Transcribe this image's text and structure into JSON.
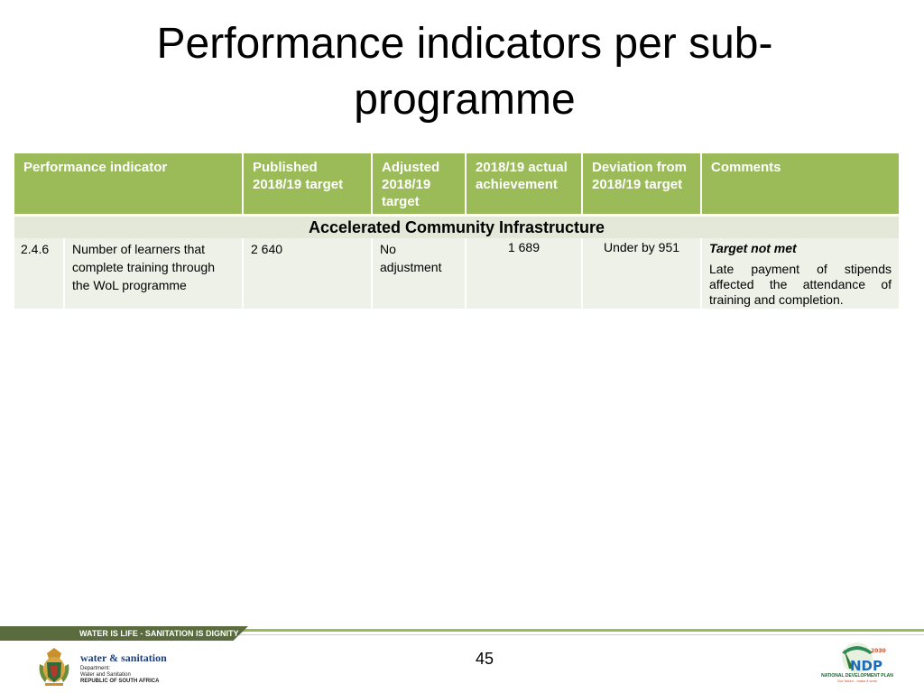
{
  "title": "Performance indicators per sub-programme",
  "table": {
    "headers": [
      "Performance indicator",
      "Published 2018/19 target",
      "Adjusted 2018/19 target",
      "2018/19 actual achievement",
      "Deviation from 2018/19 target",
      "Comments"
    ],
    "section": "Accelerated Community Infrastructure",
    "rows": [
      {
        "code": "2.4.6",
        "indicator": "Number of learners that complete training through the WoL programme",
        "published_target": "2 640",
        "adjusted_target": "No adjustment",
        "actual": "1 689",
        "deviation": "Under by 951",
        "comment_title": "Target not met",
        "comment_body": "Late payment of stipends affected the attendance of training and completion."
      }
    ]
  },
  "footer": {
    "slogan": "WATER IS LIFE - SANITATION IS DIGNITY",
    "page_number": "45",
    "dept_name": "water & sanitation",
    "dept_line1": "Department:",
    "dept_line2": "Water and Sanitation",
    "dept_line3": "REPUBLIC OF SOUTH AFRICA",
    "ndp_year": "2030",
    "ndp_letters": "NDP",
    "ndp_name": "NATIONAL DEVELOPMENT PLAN",
    "ndp_tagline": "Our future - make it work"
  },
  "colors": {
    "header_green": "#9bbb59",
    "section_bg": "#e3e8d8",
    "row_bg": "#eef1e7",
    "band_dark": "#5a6b3d"
  }
}
